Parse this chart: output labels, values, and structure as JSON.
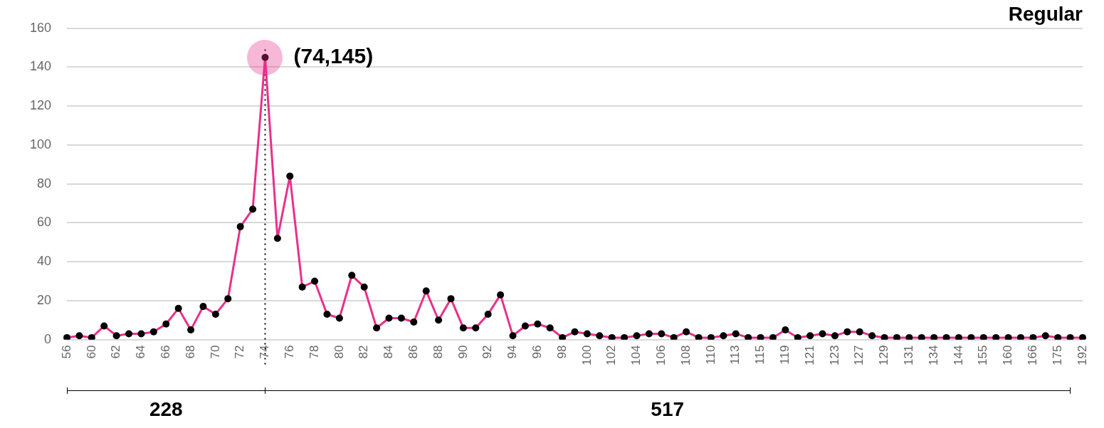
{
  "chart_data": {
    "type": "line",
    "title": "Regular",
    "categories": [
      "56",
      null,
      "60",
      null,
      "62",
      null,
      "64",
      null,
      "66",
      null,
      "68",
      null,
      "70",
      null,
      "72",
      null,
      "74",
      null,
      "76",
      null,
      "78",
      null,
      "80",
      null,
      "82",
      null,
      "84",
      null,
      "86",
      null,
      "88",
      null,
      "90",
      null,
      "92",
      null,
      "94",
      null,
      "96",
      null,
      "98",
      null,
      "100",
      null,
      "102",
      null,
      "104",
      null,
      "106",
      null,
      "108",
      null,
      "110",
      null,
      "113",
      null,
      "115",
      null,
      "119",
      null,
      "121",
      null,
      "123",
      null,
      "127",
      null,
      "129",
      null,
      "131",
      null,
      "134",
      null,
      "144",
      null,
      "155",
      null,
      "160",
      null,
      "166",
      null,
      "175",
      null,
      "192"
    ],
    "series": [
      {
        "color": "#e8318a",
        "values": [
          1,
          2,
          1,
          7,
          2,
          3,
          3,
          4,
          8,
          16,
          5,
          17,
          13,
          21,
          58,
          67,
          145,
          52,
          84,
          27,
          30,
          13,
          11,
          33,
          27,
          6,
          11,
          11,
          9,
          25,
          10,
          21,
          6,
          6,
          13,
          23,
          2,
          7,
          8,
          6,
          1,
          4,
          3,
          2,
          1,
          1,
          2,
          3,
          3,
          1,
          4,
          1,
          1,
          2,
          3,
          1,
          1,
          1,
          5,
          1,
          2,
          3,
          2,
          4,
          4,
          2,
          1,
          1,
          1,
          1,
          1,
          1,
          1,
          1,
          1,
          1,
          1,
          1,
          1,
          2,
          1,
          1,
          1
        ]
      }
    ],
    "ylim": [
      0,
      160
    ],
    "yticks": [
      0,
      20,
      40,
      60,
      80,
      100,
      120,
      140,
      160
    ],
    "grid": "y",
    "legend": false,
    "marker": "circle",
    "line_style": "solid",
    "ref_lines": [
      {
        "axis": "x",
        "value": "74",
        "line_style": "dotted",
        "color": "#000000"
      }
    ],
    "annotations": [
      {
        "text": "(74,145)",
        "x": "74",
        "y": 145
      },
      "228",
      "517"
    ]
  }
}
